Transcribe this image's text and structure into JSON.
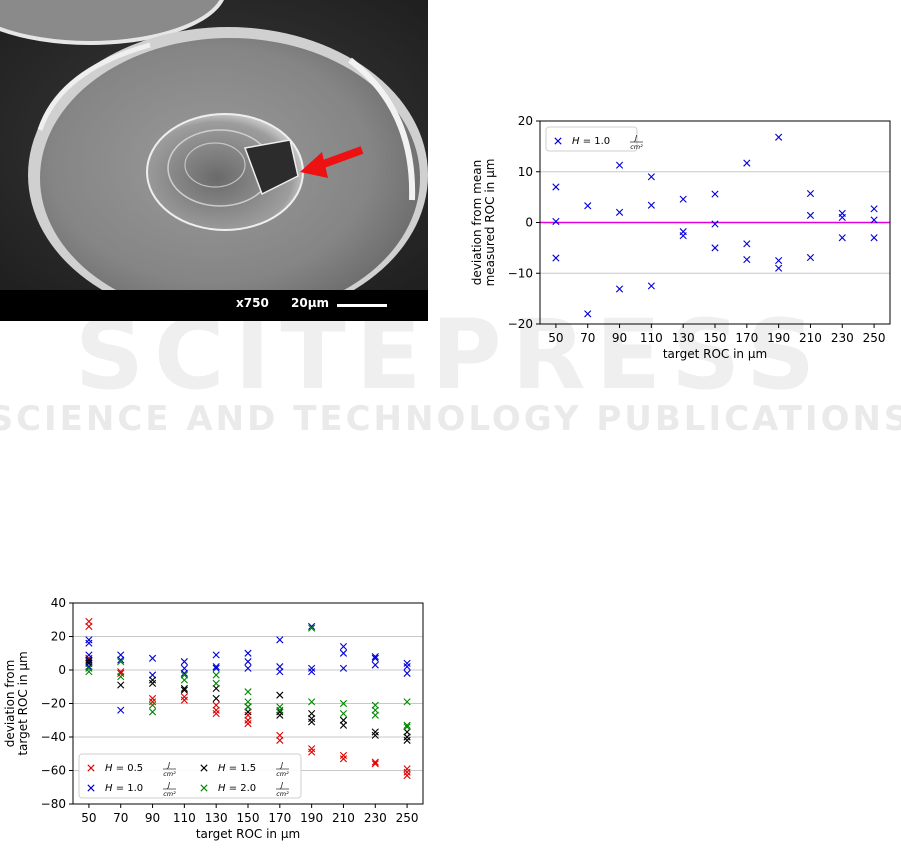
{
  "image": {
    "magnification": "x750",
    "scale_label": "20µm"
  },
  "watermark": {
    "line1": "SCITEPRESS",
    "line2": "SCIENCE AND TECHNOLOGY PUBLICATIONS"
  },
  "chart_data": [
    {
      "type": "scatter",
      "title": "",
      "xlabel": "target ROC in µm",
      "ylabel": [
        "deviation from mean",
        "measured ROC in µm"
      ],
      "categories": [
        50,
        70,
        90,
        110,
        130,
        150,
        170,
        190,
        210,
        230,
        250
      ],
      "ylim": [
        -20,
        20
      ],
      "yticks": [
        -20,
        -10,
        0,
        10,
        20
      ],
      "grid": "horizontal",
      "legend_position": "top-left",
      "reference_line": {
        "y": 0,
        "color": "#e000e0"
      },
      "series": [
        {
          "name": "H = 1.0 J/cm²",
          "color": "#0000dd",
          "points": [
            [
              50,
              7
            ],
            [
              50,
              0.2
            ],
            [
              50,
              -7
            ],
            [
              70,
              3.3
            ],
            [
              70,
              -18
            ],
            [
              90,
              11.3
            ],
            [
              90,
              2
            ],
            [
              90,
              -13.1
            ],
            [
              110,
              9
            ],
            [
              110,
              3.4
            ],
            [
              110,
              -12.5
            ],
            [
              130,
              4.6
            ],
            [
              130,
              -1.8
            ],
            [
              130,
              -2.6
            ],
            [
              150,
              5.6
            ],
            [
              150,
              -0.3
            ],
            [
              150,
              -5
            ],
            [
              170,
              11.7
            ],
            [
              170,
              -4.2
            ],
            [
              170,
              -7.3
            ],
            [
              190,
              16.8
            ],
            [
              190,
              -7.5
            ],
            [
              190,
              -9
            ],
            [
              210,
              5.7
            ],
            [
              210,
              1.4
            ],
            [
              210,
              -6.9
            ],
            [
              230,
              1.8
            ],
            [
              230,
              1
            ],
            [
              230,
              -3
            ],
            [
              250,
              2.7
            ],
            [
              250,
              0.5
            ],
            [
              250,
              -3
            ]
          ]
        }
      ]
    },
    {
      "type": "scatter",
      "title": "",
      "xlabel": "target ROC in µm",
      "ylabel": [
        "deviation from",
        "target ROC in µm"
      ],
      "categories": [
        50,
        70,
        90,
        110,
        130,
        150,
        170,
        190,
        210,
        230,
        250
      ],
      "ylim": [
        -80,
        40
      ],
      "yticks": [
        -80,
        -60,
        -40,
        -20,
        0,
        20,
        40
      ],
      "grid": "horizontal",
      "legend_position": "bottom-left",
      "series": [
        {
          "name": "H = 0.5 J/cm²",
          "color": "#e00000",
          "points": [
            [
              50,
              29
            ],
            [
              50,
              26
            ],
            [
              50,
              7
            ],
            [
              50,
              4
            ],
            [
              70,
              -1
            ],
            [
              70,
              -2
            ],
            [
              90,
              -17
            ],
            [
              90,
              -19
            ],
            [
              110,
              -16
            ],
            [
              110,
              -18
            ],
            [
              130,
              -21
            ],
            [
              130,
              -24
            ],
            [
              130,
              -26
            ],
            [
              150,
              -27
            ],
            [
              150,
              -30
            ],
            [
              150,
              -32
            ],
            [
              170,
              -39
            ],
            [
              170,
              -42
            ],
            [
              190,
              -47
            ],
            [
              190,
              -49
            ],
            [
              210,
              -51
            ],
            [
              210,
              -53
            ],
            [
              230,
              -55
            ],
            [
              230,
              -56
            ],
            [
              250,
              -59
            ],
            [
              250,
              -61
            ],
            [
              250,
              -63
            ]
          ]
        },
        {
          "name": "H = 1.0 J/cm²",
          "color": "#0000dd",
          "points": [
            [
              50,
              18
            ],
            [
              50,
              16
            ],
            [
              50,
              9
            ],
            [
              50,
              5
            ],
            [
              50,
              2
            ],
            [
              70,
              9
            ],
            [
              70,
              6
            ],
            [
              70,
              -24
            ],
            [
              90,
              7
            ],
            [
              90,
              -3
            ],
            [
              110,
              5
            ],
            [
              110,
              1
            ],
            [
              110,
              -2
            ],
            [
              130,
              9
            ],
            [
              130,
              2
            ],
            [
              130,
              1
            ],
            [
              150,
              10
            ],
            [
              150,
              5
            ],
            [
              150,
              1
            ],
            [
              170,
              18
            ],
            [
              170,
              2
            ],
            [
              170,
              -1
            ],
            [
              190,
              26
            ],
            [
              190,
              1
            ],
            [
              190,
              -1
            ],
            [
              210,
              14
            ],
            [
              210,
              10
            ],
            [
              210,
              1
            ],
            [
              230,
              8
            ],
            [
              230,
              7
            ],
            [
              230,
              3
            ],
            [
              250,
              4
            ],
            [
              250,
              2
            ],
            [
              250,
              -2
            ]
          ]
        },
        {
          "name": "H = 1.5 J/cm²",
          "color": "#000000",
          "points": [
            [
              50,
              6
            ],
            [
              50,
              4
            ],
            [
              70,
              -9
            ],
            [
              90,
              -6
            ],
            [
              90,
              -8
            ],
            [
              110,
              -11
            ],
            [
              110,
              -12
            ],
            [
              130,
              -11
            ],
            [
              130,
              -17
            ],
            [
              150,
              -22
            ],
            [
              150,
              -25
            ],
            [
              170,
              -15
            ],
            [
              170,
              -25
            ],
            [
              170,
              -27
            ],
            [
              190,
              -26
            ],
            [
              190,
              -29
            ],
            [
              190,
              -31
            ],
            [
              210,
              -30
            ],
            [
              210,
              -33
            ],
            [
              230,
              -37
            ],
            [
              230,
              -39
            ],
            [
              250,
              -37
            ],
            [
              250,
              -40
            ],
            [
              250,
              -42
            ]
          ]
        },
        {
          "name": "H = 2.0 J/cm²",
          "color": "#008800",
          "points": [
            [
              50,
              1
            ],
            [
              50,
              -1
            ],
            [
              70,
              5
            ],
            [
              70,
              -4
            ],
            [
              90,
              -21
            ],
            [
              90,
              -25
            ],
            [
              110,
              -3
            ],
            [
              110,
              -6
            ],
            [
              130,
              -3
            ],
            [
              130,
              -8
            ],
            [
              150,
              -13
            ],
            [
              150,
              -19
            ],
            [
              150,
              -22
            ],
            [
              170,
              -22
            ],
            [
              170,
              -24
            ],
            [
              190,
              25
            ],
            [
              190,
              -19
            ],
            [
              210,
              -20
            ],
            [
              210,
              -26
            ],
            [
              230,
              -21
            ],
            [
              230,
              -24
            ],
            [
              230,
              -27
            ],
            [
              250,
              -19
            ],
            [
              250,
              -33
            ],
            [
              250,
              -34
            ]
          ]
        }
      ]
    }
  ]
}
